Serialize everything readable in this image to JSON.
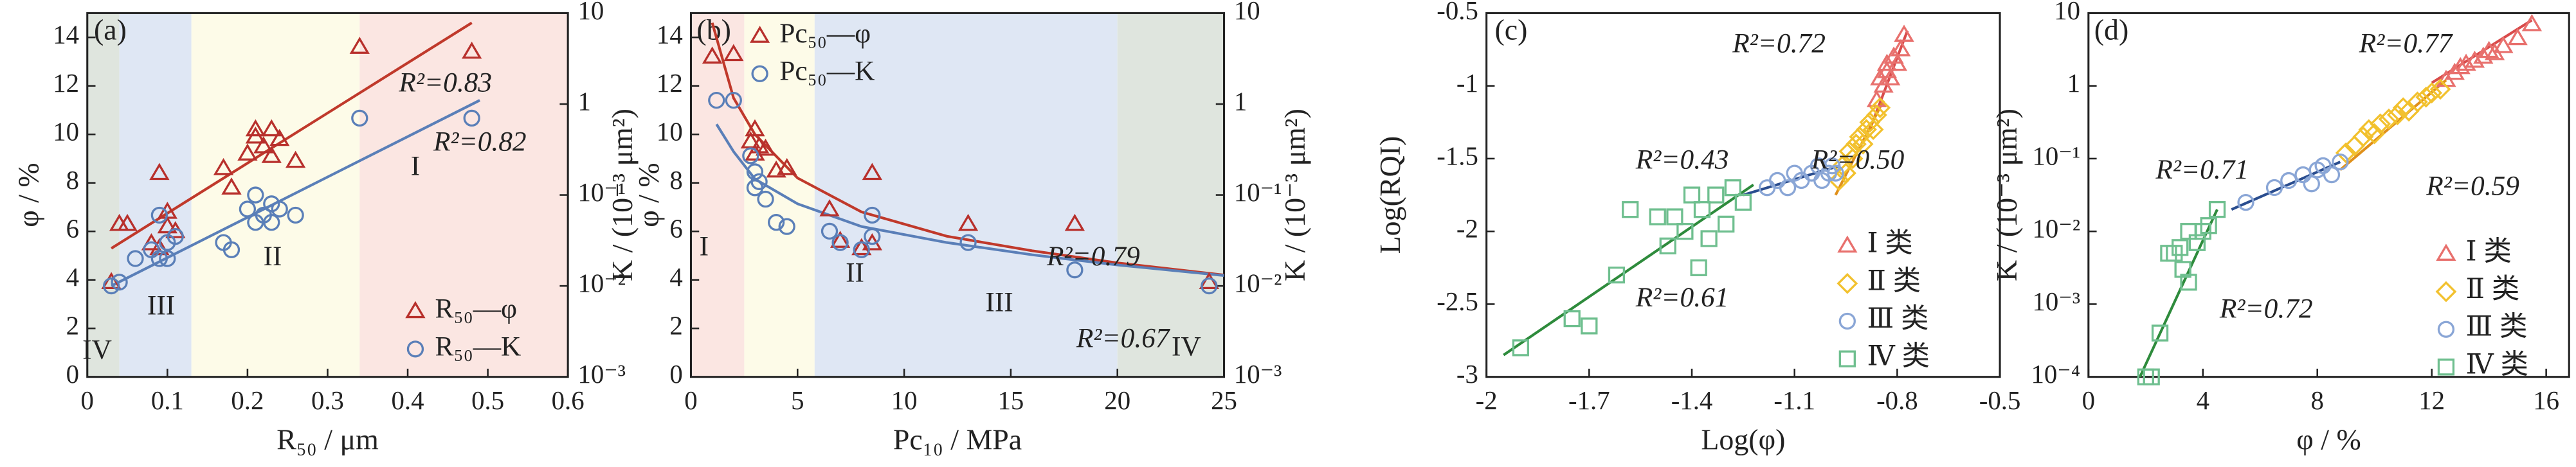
{
  "chart_data": [
    {
      "type": "scatter",
      "panel_label": "(a)",
      "xlabel": "R₅₀ / μm",
      "ylabel": "φ / %",
      "y2label": "K / (10⁻³ μm²)",
      "xlim": [
        0,
        0.6
      ],
      "xticks": [
        0,
        0.1,
        0.2,
        0.3,
        0.4,
        0.5,
        0.6
      ],
      "ylim": [
        0,
        15
      ],
      "yticks": [
        0,
        2,
        4,
        6,
        8,
        10,
        12,
        14
      ],
      "y2lim": [
        0.001,
        10
      ],
      "y2log": true,
      "y2ticks": [
        {
          "value": 0.001,
          "label": "10⁻³"
        },
        {
          "value": 0.01,
          "label": "10⁻²"
        },
        {
          "value": 0.1,
          "label": "10⁻¹"
        },
        1,
        10
      ],
      "legend": "lower right",
      "regions": [
        {
          "label": "IV",
          "from": 0,
          "to": 0.04,
          "color": "#dfe5de"
        },
        {
          "label": "III",
          "from": 0.04,
          "to": 0.13,
          "color": "#dfe7f4"
        },
        {
          "label": "II",
          "from": 0.13,
          "to": 0.34,
          "color": "#fdfbe8"
        },
        {
          "label": "I",
          "from": 0.34,
          "to": 0.6,
          "color": "#fbe6e2"
        }
      ],
      "series": [
        {
          "name": "R₅₀—φ",
          "color": "#b8302c",
          "marker": "triangle",
          "axis": "y",
          "x": [
            0.03,
            0.04,
            0.05,
            0.08,
            0.09,
            0.09,
            0.1,
            0.1,
            0.11,
            0.17,
            0.18,
            0.2,
            0.21,
            0.21,
            0.22,
            0.23,
            0.23,
            0.24,
            0.26,
            0.34,
            0.48
          ],
          "values": [
            3.9,
            6.3,
            6.3,
            5.5,
            8.4,
            5.3,
            6.8,
            6.2,
            6.0,
            8.6,
            7.8,
            9.2,
            9.9,
            10.2,
            9.5,
            10.2,
            9.1,
            9.8,
            8.9,
            13.6,
            13.4
          ]
        },
        {
          "name": "R₅₀—K",
          "color": "#5a7fb8",
          "marker": "circle",
          "axis": "y2",
          "x": [
            0.03,
            0.04,
            0.06,
            0.08,
            0.09,
            0.09,
            0.1,
            0.1,
            0.11,
            0.17,
            0.18,
            0.2,
            0.21,
            0.21,
            0.22,
            0.23,
            0.23,
            0.24,
            0.26,
            0.34,
            0.48
          ],
          "values": [
            0.01,
            0.011,
            0.02,
            0.025,
            0.06,
            0.02,
            0.03,
            0.02,
            0.035,
            0.03,
            0.025,
            0.07,
            0.05,
            0.1,
            0.06,
            0.08,
            0.05,
            0.07,
            0.06,
            0.7,
            0.7
          ]
        }
      ],
      "fits": [
        {
          "color": "#c0392b",
          "axis": "y",
          "x": [
            0.03,
            0.48
          ],
          "values": [
            5.3,
            14.6
          ]
        },
        {
          "color": "#5a7fb8",
          "axis": "y2",
          "x": [
            0.03,
            0.49
          ],
          "values": [
            0.01,
            1.1
          ]
        }
      ],
      "annotations": [
        {
          "text": "R²=0.83",
          "color": "#b8302c"
        },
        {
          "text": "R²=0.82",
          "color": "#5a7fb8"
        }
      ]
    },
    {
      "type": "scatter",
      "panel_label": "(b)",
      "xlabel": "Pc₁₀ / MPa",
      "ylabel": "φ / %",
      "y2label": "K / (10⁻³ μm²)",
      "xlim": [
        0,
        25
      ],
      "xticks": [
        0,
        5,
        10,
        15,
        20,
        25
      ],
      "ylim": [
        0,
        15
      ],
      "yticks": [
        0,
        2,
        4,
        6,
        8,
        10,
        12,
        14
      ],
      "y2lim": [
        0.001,
        10
      ],
      "y2log": true,
      "y2ticks": [
        {
          "value": 0.001,
          "label": "10⁻³"
        },
        {
          "value": 0.01,
          "label": "10⁻²"
        },
        {
          "value": 0.1,
          "label": "10⁻¹"
        },
        1,
        10
      ],
      "legend": "upper right",
      "regions": [
        {
          "label": "I",
          "from": 0,
          "to": 2.5,
          "color": "#fbe6e2"
        },
        {
          "label": "II",
          "from": 2.5,
          "to": 5.8,
          "color": "#fdfbe8"
        },
        {
          "label": "III",
          "from": 5.8,
          "to": 20,
          "color": "#dfe7f4"
        },
        {
          "label": "IV",
          "from": 20,
          "to": 25,
          "color": "#dfe5de"
        }
      ],
      "series": [
        {
          "name": "Pc₅₀—φ",
          "color": "#b8302c",
          "marker": "triangle",
          "axis": "y",
          "x": [
            1,
            2,
            2.8,
            3,
            3,
            3.2,
            3.5,
            4,
            4.5,
            6.5,
            7,
            8,
            8.5,
            8.5,
            13,
            18,
            24.3
          ],
          "values": [
            13.2,
            13.3,
            9.7,
            10.2,
            9.2,
            9.5,
            9.4,
            8.5,
            8.6,
            6.9,
            5.6,
            5.3,
            8.4,
            5.5,
            6.3,
            6.3,
            3.9
          ]
        },
        {
          "name": "Pc₅₀—K",
          "color": "#5a7fb8",
          "marker": "circle",
          "axis": "y2",
          "x": [
            1.2,
            2,
            2.8,
            3,
            3,
            3.2,
            3.5,
            4,
            4.5,
            6.5,
            7,
            8,
            8.5,
            8.5,
            13,
            18,
            24.3
          ],
          "values": [
            1.1,
            1.1,
            0.27,
            0.18,
            0.12,
            0.14,
            0.09,
            0.05,
            0.045,
            0.04,
            0.03,
            0.025,
            0.06,
            0.035,
            0.03,
            0.015,
            0.01
          ]
        }
      ],
      "fits": [
        {
          "color": "#c0392b",
          "axis": "y",
          "x": [
            1,
            2,
            3,
            5,
            8,
            12,
            16,
            20,
            25
          ],
          "values": [
            14.6,
            11.5,
            10,
            8.2,
            6.8,
            5.8,
            5.2,
            4.7,
            4.2
          ]
        },
        {
          "color": "#5a7fb8",
          "axis": "y2",
          "x": [
            1.2,
            2,
            3,
            5,
            8,
            12,
            16,
            20,
            25
          ],
          "values": [
            0.6,
            0.3,
            0.15,
            0.08,
            0.045,
            0.03,
            0.022,
            0.017,
            0.013
          ]
        }
      ],
      "annotations": [
        {
          "text": "R²=0.79",
          "color": "#b8302c"
        },
        {
          "text": "R²=0.67",
          "color": "#5a7fb8"
        }
      ]
    },
    {
      "type": "scatter",
      "panel_label": "(c)",
      "xlabel": "Log(φ)",
      "ylabel": "Log(RQI)",
      "xlim": [
        -2,
        -0.5
      ],
      "xticks": [
        -2,
        -1.7,
        -1.4,
        -1.1,
        -0.8,
        -0.5
      ],
      "ylim": [
        -3,
        -0.5
      ],
      "yticks": [
        -3,
        -2.5,
        -2,
        -1.5,
        -1,
        -0.5
      ],
      "legend": "lower right",
      "series": [
        {
          "name": "Ⅰ 类",
          "color": "#e8706d",
          "marker": "triangle",
          "axis": "y",
          "x": [
            -0.86,
            -0.85,
            -0.84,
            -0.83,
            -0.83,
            -0.82,
            -0.81,
            -0.8,
            -0.79,
            -0.78
          ],
          "values": [
            -1.1,
            -0.95,
            -1.0,
            -0.9,
            -0.85,
            -0.95,
            -0.8,
            -0.85,
            -0.75,
            -0.65
          ]
        },
        {
          "name": "Ⅱ 类",
          "color": "#f2c12e",
          "marker": "diamond",
          "axis": "y",
          "x": [
            -0.97,
            -0.96,
            -0.95,
            -0.94,
            -0.93,
            -0.92,
            -0.91,
            -0.9,
            -0.89,
            -0.88,
            -0.87,
            -0.86,
            -0.85
          ],
          "values": [
            -1.65,
            -1.55,
            -1.6,
            -1.45,
            -1.5,
            -1.4,
            -1.35,
            -1.4,
            -1.3,
            -1.25,
            -1.3,
            -1.2,
            -1.15
          ]
        },
        {
          "name": "Ⅲ 类",
          "color": "#8aa6d6",
          "marker": "circle",
          "axis": "y",
          "x": [
            -1.18,
            -1.15,
            -1.12,
            -1.1,
            -1.08,
            -1.05,
            -1.03,
            -1.02,
            -1.0,
            -0.99,
            -0.98
          ],
          "values": [
            -1.7,
            -1.65,
            -1.7,
            -1.6,
            -1.65,
            -1.6,
            -1.55,
            -1.65,
            -1.6,
            -1.55,
            -1.6
          ]
        },
        {
          "name": "Ⅳ 类",
          "color": "#6fbf8f",
          "marker": "square",
          "axis": "y",
          "x": [
            -1.9,
            -1.75,
            -1.7,
            -1.62,
            -1.58,
            -1.5,
            -1.47,
            -1.45,
            -1.42,
            -1.4,
            -1.38,
            -1.37,
            -1.35,
            -1.33,
            -1.3,
            -1.28,
            -1.25
          ],
          "values": [
            -2.8,
            -2.6,
            -2.65,
            -2.3,
            -1.85,
            -1.9,
            -2.1,
            -1.9,
            -2.0,
            -1.75,
            -2.25,
            -1.85,
            -2.05,
            -1.75,
            -1.95,
            -1.7,
            -1.8
          ]
        }
      ],
      "fits": [
        {
          "color": "#d94b4b",
          "axis": "y",
          "x": [
            -0.88,
            -0.77
          ],
          "values": [
            -1.3,
            -0.62
          ]
        },
        {
          "color": "#e0901a",
          "axis": "y",
          "x": [
            -0.98,
            -0.84
          ],
          "values": [
            -1.75,
            -1.1
          ]
        },
        {
          "color": "#2a4d8f",
          "axis": "y",
          "x": [
            -1.25,
            -0.97
          ],
          "values": [
            -1.75,
            -1.55
          ]
        },
        {
          "color": "#2e8b3c",
          "axis": "y",
          "x": [
            -1.95,
            -1.22
          ],
          "values": [
            -2.85,
            -1.68
          ]
        }
      ],
      "annotations": [
        {
          "text": "R²=0.72",
          "color": "#222"
        },
        {
          "text": "R²=0.50",
          "color": "#222"
        },
        {
          "text": "R²=0.43",
          "color": "#222"
        },
        {
          "text": "R²=0.61",
          "color": "#222"
        }
      ]
    },
    {
      "type": "scatter",
      "panel_label": "(d)",
      "xlabel": "φ / %",
      "ylabel": "K / (10⁻³ μm²)",
      "xlim": [
        0,
        16.8
      ],
      "xticks": [
        0,
        4,
        8,
        12,
        16
      ],
      "ylim": [
        0.0001,
        10
      ],
      "ylog": true,
      "yticks": [
        {
          "value": 0.0001,
          "label": "10⁻⁴"
        },
        {
          "value": 0.001,
          "label": "10⁻³"
        },
        {
          "value": 0.01,
          "label": "10⁻²"
        },
        {
          "value": 0.1,
          "label": "10⁻¹"
        },
        1,
        10
      ],
      "legend": "lower right",
      "series": [
        {
          "name": "Ⅰ 类",
          "color": "#e8706d",
          "marker": "triangle",
          "axis": "y",
          "x": [
            12.5,
            12.8,
            13,
            13.2,
            13.5,
            13.8,
            14,
            14.2,
            14.5,
            15,
            15.5
          ],
          "values": [
            1.2,
            1.5,
            1.8,
            2,
            2.2,
            2.5,
            3,
            2.8,
            3.5,
            4.5,
            7
          ]
        },
        {
          "name": "Ⅱ 类",
          "color": "#f2c12e",
          "marker": "diamond",
          "axis": "y",
          "x": [
            9,
            9.3,
            9.6,
            9.8,
            10,
            10.2,
            10.5,
            10.8,
            11,
            11.2,
            11.5,
            11.8,
            12,
            12.3
          ],
          "values": [
            0.12,
            0.15,
            0.2,
            0.25,
            0.22,
            0.3,
            0.35,
            0.4,
            0.5,
            0.45,
            0.6,
            0.7,
            0.8,
            0.9
          ]
        },
        {
          "name": "Ⅲ 类",
          "color": "#8aa6d6",
          "marker": "circle",
          "axis": "y",
          "x": [
            5.5,
            6.5,
            7,
            7.5,
            7.8,
            8,
            8.2,
            8.5,
            8.8
          ],
          "values": [
            0.025,
            0.04,
            0.05,
            0.06,
            0.045,
            0.07,
            0.08,
            0.06,
            0.09
          ]
        },
        {
          "name": "Ⅳ 类",
          "color": "#6fbf8f",
          "marker": "square",
          "axis": "y",
          "x": [
            2,
            2.2,
            2.5,
            2.8,
            3,
            3.2,
            3.3,
            3.5,
            3.5,
            3.8,
            4,
            4.2,
            4.5
          ],
          "values": [
            0.0001,
            0.0001,
            0.0004,
            0.005,
            0.005,
            0.006,
            0.003,
            0.01,
            0.002,
            0.007,
            0.01,
            0.012,
            0.02
          ]
        }
      ],
      "fits": [
        {
          "color": "#d94b4b",
          "axis": "y",
          "x": [
            12,
            15.5
          ],
          "values": [
            1.1,
            8
          ]
        },
        {
          "color": "#e0901a",
          "axis": "y",
          "x": [
            8.8,
            12.5
          ],
          "values": [
            0.07,
            1.2
          ]
        },
        {
          "color": "#2a4d8f",
          "axis": "y",
          "x": [
            5,
            8.8
          ],
          "values": [
            0.02,
            0.09
          ]
        },
        {
          "color": "#2e8b3c",
          "axis": "y",
          "x": [
            1.8,
            4.5
          ],
          "values": [
            0.0001,
            0.02
          ]
        }
      ],
      "annotations": [
        {
          "text": "R²=0.77",
          "color": "#222"
        },
        {
          "text": "R²=0.59",
          "color": "#222"
        },
        {
          "text": "R²=0.71",
          "color": "#222"
        },
        {
          "text": "R²=0.72",
          "color": "#222"
        }
      ]
    }
  ]
}
